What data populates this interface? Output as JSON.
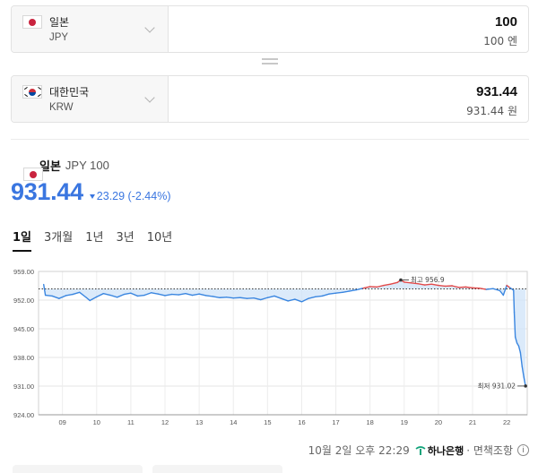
{
  "from": {
    "flag": "japan-flag",
    "country": "일본",
    "code": "JPY",
    "amount": "100",
    "amount_text": "100 엔"
  },
  "to": {
    "flag": "korea-flag",
    "country": "대한민국",
    "code": "KRW",
    "amount": "931.44",
    "amount_text": "931.44 원"
  },
  "summary": {
    "country": "일본",
    "code_label": "JPY 100",
    "rate": "931.44",
    "change": "23.29 (-2.44%)",
    "change_color": "#3a76e0"
  },
  "tabs": [
    {
      "label": "1일",
      "active": true
    },
    {
      "label": "3개월",
      "active": false
    },
    {
      "label": "1년",
      "active": false
    },
    {
      "label": "3년",
      "active": false
    },
    {
      "label": "10년",
      "active": false
    }
  ],
  "chart_data": {
    "type": "line",
    "x_ticks": [
      "09",
      "10",
      "11",
      "12",
      "13",
      "14",
      "15",
      "16",
      "17",
      "18",
      "19",
      "20",
      "21",
      "22"
    ],
    "y_ticks": [
      "959.00",
      "952.00",
      "945.00",
      "938.00",
      "931.00",
      "924.00"
    ],
    "ylim": [
      924,
      959
    ],
    "reference_value": 954.73,
    "annotations": {
      "high": "최고 956.9",
      "low": "최저 931.02"
    },
    "colors": {
      "below": "#3a86e0",
      "above": "#e24a4a",
      "fill": "#cfe3f8"
    },
    "series": [
      {
        "x": 8.45,
        "y": 955.8
      },
      {
        "x": 8.5,
        "y": 953.2
      },
      {
        "x": 8.7,
        "y": 953.0
      },
      {
        "x": 8.9,
        "y": 952.4
      },
      {
        "x": 9.1,
        "y": 953.1
      },
      {
        "x": 9.3,
        "y": 953.4
      },
      {
        "x": 9.5,
        "y": 953.9
      },
      {
        "x": 9.7,
        "y": 952.6
      },
      {
        "x": 9.8,
        "y": 951.9
      },
      {
        "x": 10.0,
        "y": 952.8
      },
      {
        "x": 10.2,
        "y": 953.6
      },
      {
        "x": 10.4,
        "y": 953.2
      },
      {
        "x": 10.6,
        "y": 952.7
      },
      {
        "x": 10.8,
        "y": 953.4
      },
      {
        "x": 11.0,
        "y": 953.7
      },
      {
        "x": 11.2,
        "y": 953.0
      },
      {
        "x": 11.4,
        "y": 953.2
      },
      {
        "x": 11.6,
        "y": 953.8
      },
      {
        "x": 11.8,
        "y": 953.5
      },
      {
        "x": 12.0,
        "y": 953.1
      },
      {
        "x": 12.2,
        "y": 953.4
      },
      {
        "x": 12.4,
        "y": 953.3
      },
      {
        "x": 12.6,
        "y": 953.6
      },
      {
        "x": 12.8,
        "y": 953.2
      },
      {
        "x": 13.0,
        "y": 953.5
      },
      {
        "x": 13.2,
        "y": 953.1
      },
      {
        "x": 13.4,
        "y": 952.9
      },
      {
        "x": 13.6,
        "y": 952.6
      },
      {
        "x": 13.8,
        "y": 952.7
      },
      {
        "x": 14.0,
        "y": 952.5
      },
      {
        "x": 14.2,
        "y": 952.6
      },
      {
        "x": 14.4,
        "y": 952.4
      },
      {
        "x": 14.6,
        "y": 952.5
      },
      {
        "x": 14.8,
        "y": 952.1
      },
      {
        "x": 15.0,
        "y": 952.6
      },
      {
        "x": 15.2,
        "y": 953.0
      },
      {
        "x": 15.4,
        "y": 952.4
      },
      {
        "x": 15.6,
        "y": 951.8
      },
      {
        "x": 15.8,
        "y": 952.2
      },
      {
        "x": 16.0,
        "y": 951.6
      },
      {
        "x": 16.2,
        "y": 952.4
      },
      {
        "x": 16.4,
        "y": 952.8
      },
      {
        "x": 16.6,
        "y": 953.0
      },
      {
        "x": 16.8,
        "y": 953.5
      },
      {
        "x": 17.0,
        "y": 953.7
      },
      {
        "x": 17.2,
        "y": 953.9
      },
      {
        "x": 17.4,
        "y": 954.2
      },
      {
        "x": 17.6,
        "y": 954.5
      },
      {
        "x": 17.8,
        "y": 954.9
      },
      {
        "x": 18.0,
        "y": 955.3
      },
      {
        "x": 18.2,
        "y": 955.2
      },
      {
        "x": 18.4,
        "y": 955.6
      },
      {
        "x": 18.6,
        "y": 955.9
      },
      {
        "x": 18.8,
        "y": 956.3
      },
      {
        "x": 18.9,
        "y": 956.9
      },
      {
        "x": 19.0,
        "y": 956.4
      },
      {
        "x": 19.2,
        "y": 956.2
      },
      {
        "x": 19.4,
        "y": 956.0
      },
      {
        "x": 19.6,
        "y": 955.7
      },
      {
        "x": 19.8,
        "y": 955.9
      },
      {
        "x": 20.0,
        "y": 955.6
      },
      {
        "x": 20.2,
        "y": 955.4
      },
      {
        "x": 20.4,
        "y": 955.5
      },
      {
        "x": 20.6,
        "y": 955.1
      },
      {
        "x": 20.8,
        "y": 955.2
      },
      {
        "x": 21.0,
        "y": 955.0
      },
      {
        "x": 21.2,
        "y": 954.9
      },
      {
        "x": 21.4,
        "y": 954.6
      },
      {
        "x": 21.6,
        "y": 954.8
      },
      {
        "x": 21.8,
        "y": 954.3
      },
      {
        "x": 21.9,
        "y": 953.2
      },
      {
        "x": 22.0,
        "y": 955.6
      },
      {
        "x": 22.1,
        "y": 955.0
      },
      {
        "x": 22.2,
        "y": 954.4
      },
      {
        "x": 22.22,
        "y": 949.0
      },
      {
        "x": 22.25,
        "y": 943.0
      },
      {
        "x": 22.3,
        "y": 941.5
      },
      {
        "x": 22.35,
        "y": 940.8
      },
      {
        "x": 22.4,
        "y": 939.2
      },
      {
        "x": 22.45,
        "y": 935.8
      },
      {
        "x": 22.5,
        "y": 933.2
      },
      {
        "x": 22.55,
        "y": 931.02
      }
    ]
  },
  "footer": {
    "timestamp": "10월 2일 오후 22:29",
    "bank": "하나은행",
    "suffix": "· 면책조항",
    "info_icon": "info-icon"
  }
}
